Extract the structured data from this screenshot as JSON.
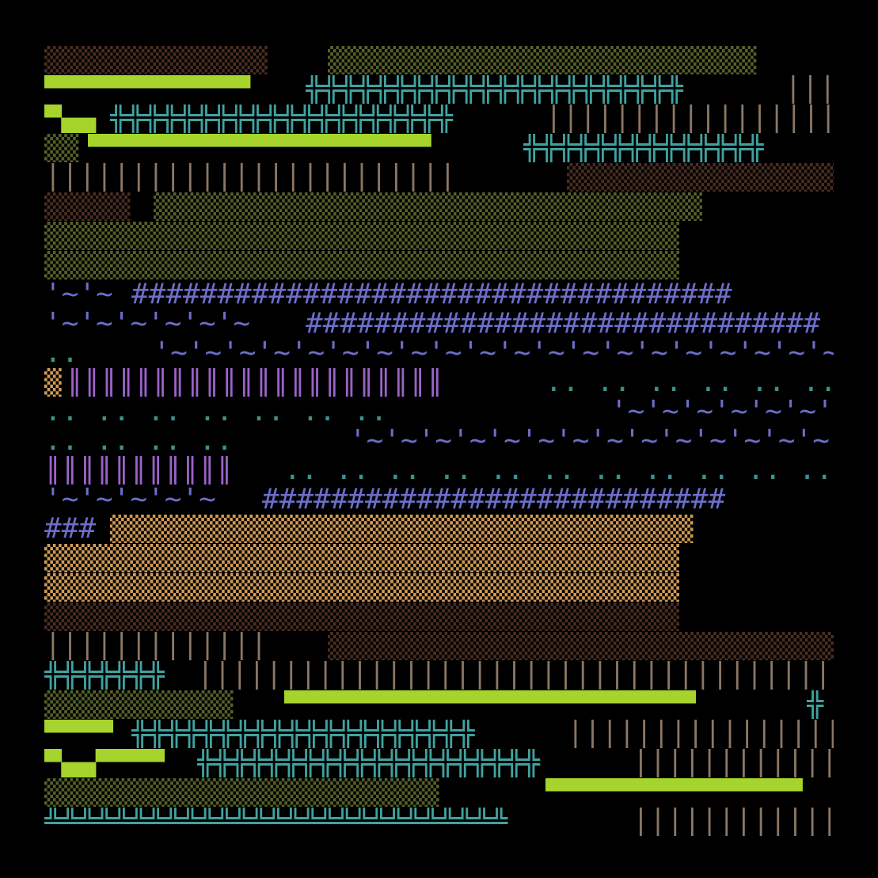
{
  "background": "#000000",
  "palette": {
    "olive": "#55602a",
    "brown": "#4a2e22",
    "tan": "#d19a55",
    "lime": "#a6d42c",
    "teal": "#3fa3a0",
    "pipe": "#8b7765",
    "indigo": "#6c6ec9",
    "purple": "#9b63c9"
  },
  "rows": [
    [
      [
        "s-block-brown",
        "▒▒▒▒▒▒▒▒▒▒▒▒▒"
      ],
      [
        "s-block-olive",
        "▒▒▒▒▒▒▒▒▒▒▒▒▒▒▒▒▒▒▒▒▒▒▒▒▒"
      ]
    ],
    [
      [
        "s-dash-lime",
        "▀▀▀▀▀▀▀▀▀▀▀▀"
      ],
      [
        "s-teal",
        "╬╬╬╬╬╬╬╬╬╬╬╬╬╬╬╬╬╬╬╬╬╬"
      ],
      [
        "s-pipe-tan",
        "│││"
      ]
    ],
    [
      [
        "s-dash-lime",
        "▀▄▄"
      ],
      [
        "s-teal",
        "╬╬╬╬╬╬╬╬╬╬╬╬╬╬╬╬╬╬╬╬"
      ],
      [
        "s-pipe-tan",
        "││││││││││││││││││││││││││││││││││"
      ]
    ],
    [
      [
        "s-block-olive",
        "▒▒"
      ],
      [
        "s-dash-lime",
        "▀▀▀▀▀▀▀▀▀▀▀▀▀▀▀▀▀▀▀▀"
      ],
      [
        "s-teal",
        "╬╬╬╬╬╬╬╬╬╬╬╬╬╬"
      ]
    ],
    [
      [
        "s-pipe-tan",
        "││││││││││││││││││││││││"
      ],
      [
        "s-block-brown",
        "▒▒▒▒▒▒▒▒▒▒▒▒▒▒▒▒▒▒▒▒▒▒▒▒"
      ]
    ],
    [
      [
        "s-block-brown",
        "▒▒▒▒▒"
      ],
      [
        "s-block-olive",
        "▒▒▒▒▒▒▒▒▒▒▒▒▒▒▒▒▒▒▒▒▒▒▒▒▒▒▒▒▒▒▒▒"
      ]
    ],
    [
      [
        "s-block-olive",
        "▒▒▒▒▒▒▒▒▒▒▒▒▒▒▒▒▒▒▒▒▒▒▒▒▒▒▒▒▒▒▒▒▒▒▒▒▒"
      ]
    ],
    [
      [
        "s-block-olive",
        "▒▒▒▒▒▒▒▒▒▒▒▒▒▒▒▒▒▒▒▒▒▒▒▒▒▒▒▒▒▒▒▒▒▒▒▒▒"
      ]
    ],
    [
      [
        "s-tilde",
        "'~'~"
      ],
      [
        "s-hash",
        "###################################"
      ]
    ],
    [
      [
        "s-tilde",
        "'~'~'~'~'~'~"
      ],
      [
        "s-hash",
        "##############################"
      ]
    ],
    [
      [
        "s-dots-teal",
        " ..  "
      ],
      [
        "s-tilde",
        "'~'~'~'~'~'~'~'~'~'~'~'~'~'~'~'~'~'~'~'~'~'~'~'~'~'~"
      ],
      [
        "s-hash",
        "#######"
      ]
    ],
    [
      [
        "s-block-tan",
        "▒"
      ],
      [
        "s-pipe-purple",
        "║║║║║║║║║║║║║║║║║║║║║║"
      ],
      [
        "s-dots-teal",
        "..  ..  ..  ..  ..  ..  ..  ..  ..  ..  .."
      ]
    ],
    [
      [
        "s-dots-teal",
        "..  ..  ..  ..  ..  ..  .."
      ],
      [
        "s-tilde",
        "'~'~'~'~'~'~'~'~'~'~'~'~'~'~'~'~'~'~'~'~'~'~'~"
      ],
      [
        "s-hash",
        "########"
      ]
    ],
    [
      [
        "s-dots-teal",
        "..  ..  ..  .."
      ],
      [
        "s-tilde",
        "'~'~'~'~'~'~'~'~'~'~'~'~'~'~'~'~'~'~'~'~'~'~'~'~'~"
      ],
      [
        "s-hash",
        "#############"
      ]
    ],
    [
      [
        "s-pipe-purple",
        "║║║║║║║║║║║"
      ],
      [
        "s-dots-teal",
        "..  ..  ..  ..  ..  ..  ..  ..  ..  ..  ..  ..  ..  ..  ..  ..  ..  ..  ..  ..  ..  .."
      ],
      [
        "s-tilde",
        "'~'~'~"
      ]
    ],
    [
      [
        "s-tilde",
        "'~'~'~'~'~"
      ],
      [
        "s-hash",
        "###########################"
      ],
      [
        "s-block-tan",
        "▒▒▒▒▒"
      ]
    ],
    [
      [
        "s-hash",
        "###"
      ],
      [
        "s-block-tan",
        "▒▒▒▒▒▒▒▒▒▒▒▒▒▒▒▒▒▒▒▒▒▒▒▒▒▒▒▒▒▒▒▒▒▒"
      ]
    ],
    [
      [
        "s-block-tan",
        "▒▒▒▒▒▒▒▒▒▒▒▒▒▒▒▒▒▒▒▒▒▒▒▒▒▒▒▒▒▒▒▒▒▒▒▒▒"
      ]
    ],
    [
      [
        "s-block-tan",
        "▒▒▒▒▒▒▒▒▒▒▒▒▒▒▒▒▒▒▒▒▒▒▒▒▒▒▒▒▒▒▒▒▒▒▒▒▒"
      ]
    ],
    [
      [
        "s-block-brown",
        "▒▒▒▒▒▒▒▒▒▒▒▒▒▒▒▒▒▒▒▒▒▒▒▒▒▒▒▒▒▒▒▒▒▒▒▒▒"
      ]
    ],
    [
      [
        "s-pipe-tan",
        "│││││││││││││"
      ],
      [
        "s-block-brown",
        "▒▒▒▒▒▒▒▒▒▒▒▒▒▒▒▒▒▒▒▒▒▒▒▒▒▒▒▒▒▒"
      ]
    ],
    [
      [
        "s-teal",
        "╬╬╬╬╬╬╬"
      ],
      [
        "s-pipe-tan",
        "││││││││││││││││││││││││││││││││││││││"
      ],
      [
        "s-block-brown",
        "▒▒"
      ]
    ],
    [
      [
        "s-block-olive",
        "▒▒▒▒▒▒▒▒▒▒▒"
      ],
      [
        "s-dash-lime",
        "▀▀▀▀▀▀▀▀▀▀▀▀▀▀▀▀▀▀▀▀▀▀▀▀"
      ],
      [
        "s-teal",
        "╬"
      ]
    ],
    [
      [
        "s-dash-lime",
        "▀▀▀▀"
      ],
      [
        "s-teal",
        "╬╬╬╬╬╬╬╬╬╬╬╬╬╬╬╬╬╬╬╬"
      ],
      [
        "s-pipe-tan",
        "││││││││││││││││││"
      ]
    ],
    [
      [
        "s-dash-lime",
        "▀▄▄▀▀▀▀"
      ],
      [
        "s-teal",
        "╬╬╬╬╬╬╬╬╬╬╬╬╬╬╬╬╬╬╬╬"
      ],
      [
        "s-pipe-tan",
        "││││││││││││││││││"
      ]
    ],
    [
      [
        "s-block-olive",
        "▒▒▒▒▒▒▒▒▒▒▒▒▒▒▒▒▒▒▒▒▒▒▒"
      ],
      [
        "s-dash-lime",
        "▀▀▀▀▀▀▀▀▀▀▀▀▀▀▀"
      ]
    ],
    [
      [
        "s-teal",
        "╩╩╩╩╩╩╩╩╩╩╩╩╩╩╩╩╩╩╩╩╩╩╩╩╩╩╩"
      ],
      [
        "s-pipe-tan",
        "││││││││││││││"
      ]
    ]
  ]
}
